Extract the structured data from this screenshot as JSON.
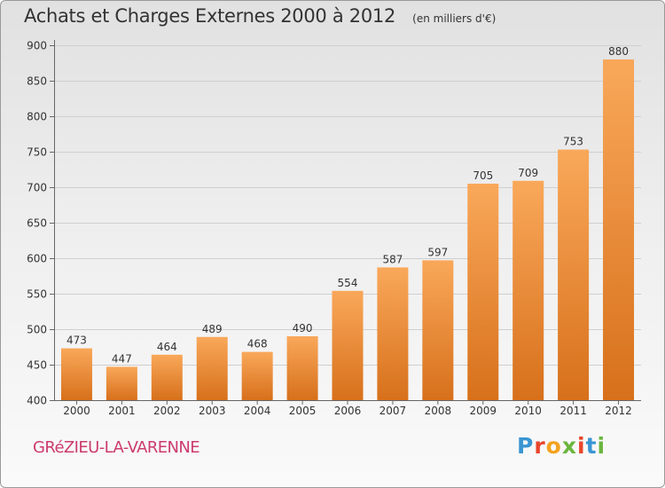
{
  "chart_data": {
    "type": "bar",
    "title": "Achats et Charges Externes 2000 à 2012",
    "subtitle": "(en milliers d'€)",
    "categories": [
      "2000",
      "2001",
      "2002",
      "2003",
      "2004",
      "2005",
      "2006",
      "2007",
      "2008",
      "2009",
      "2010",
      "2011",
      "2012"
    ],
    "values": [
      473,
      447,
      464,
      489,
      468,
      490,
      554,
      587,
      597,
      705,
      709,
      753,
      880
    ],
    "ylim": [
      400,
      900
    ],
    "yticks": [
      400,
      450,
      500,
      550,
      600,
      650,
      700,
      750,
      800,
      850,
      900
    ],
    "grid": true,
    "colors": {
      "bar_top": "#f9a85a",
      "bar_bottom": "#d7701b",
      "grid": "#cfcfcf",
      "axis": "#666666"
    }
  },
  "footer": {
    "town": "GRéZIEU-LA-VARENNE",
    "logo": [
      "P",
      "r",
      "o",
      "x",
      "i",
      "t",
      "i"
    ],
    "logo_colors": [
      "#3a96d2",
      "#e8462b",
      "#f4a21f",
      "#6bb63f",
      "#e8462b",
      "#3a96d2",
      "#6bb63f"
    ]
  }
}
